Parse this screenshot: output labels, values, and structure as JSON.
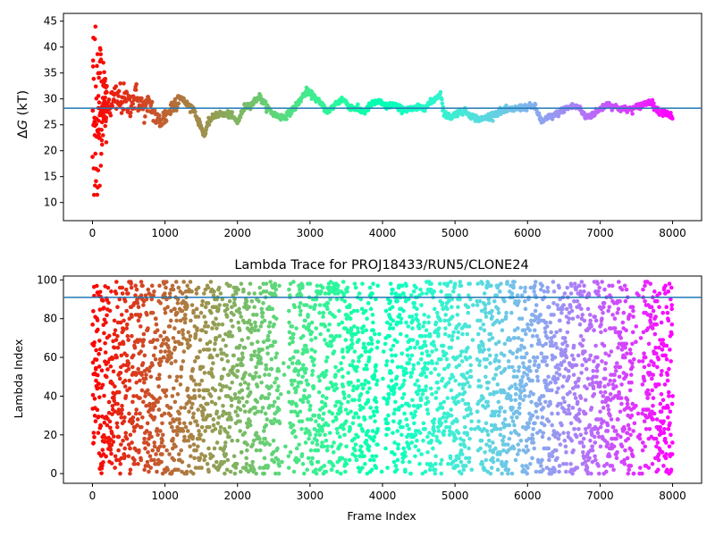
{
  "chart_data": [
    {
      "type": "scatter",
      "title": "",
      "xlabel": "",
      "ylabel": "ΔG (kT)",
      "ylabel_italic_part": "G",
      "xlim": [
        -400,
        8400
      ],
      "ylim": [
        6.5,
        46.5
      ],
      "xticks": [
        0,
        1000,
        2000,
        3000,
        4000,
        5000,
        6000,
        7000,
        8000
      ],
      "xtick_labels": [
        "0",
        "1000",
        "2000",
        "3000",
        "4000",
        "5000",
        "6000",
        "7000",
        "8000"
      ],
      "yticks": [
        10,
        15,
        20,
        25,
        30,
        35,
        40,
        45
      ],
      "ytick_labels": [
        "10",
        "15",
        "20",
        "25",
        "30",
        "35",
        "40",
        "45"
      ],
      "hline": 28.2,
      "hline_color": "#1f77b4",
      "colormap": "rainbow (color by frame index, red at 0 to purple at 8000)",
      "trace_anchors": [
        [
          150,
          29
        ],
        [
          200,
          28.5
        ],
        [
          300,
          29.5
        ],
        [
          400,
          30
        ],
        [
          500,
          29
        ],
        [
          600,
          30.5
        ],
        [
          700,
          28
        ],
        [
          800,
          29
        ],
        [
          900,
          25.5
        ],
        [
          950,
          26
        ],
        [
          1000,
          26.5
        ],
        [
          1100,
          28.5
        ],
        [
          1200,
          30.5
        ],
        [
          1300,
          29
        ],
        [
          1400,
          28
        ],
        [
          1450,
          26
        ],
        [
          1500,
          24.5
        ],
        [
          1550,
          23
        ],
        [
          1600,
          25.5
        ],
        [
          1700,
          27
        ],
        [
          1800,
          27
        ],
        [
          1900,
          27
        ],
        [
          2000,
          25.5
        ],
        [
          2100,
          28.5
        ],
        [
          2200,
          29
        ],
        [
          2300,
          30.5
        ],
        [
          2400,
          28.5
        ],
        [
          2500,
          27
        ],
        [
          2600,
          26.5
        ],
        [
          2700,
          27
        ],
        [
          2800,
          28.5
        ],
        [
          2950,
          31.5
        ],
        [
          3050,
          30.5
        ],
        [
          3150,
          29
        ],
        [
          3250,
          27.5
        ],
        [
          3350,
          29
        ],
        [
          3450,
          30
        ],
        [
          3550,
          28.5
        ],
        [
          3650,
          28
        ],
        [
          3750,
          27.5
        ],
        [
          3850,
          29
        ],
        [
          3950,
          29.5
        ],
        [
          4050,
          28.5
        ],
        [
          4150,
          29
        ],
        [
          4250,
          28
        ],
        [
          4400,
          28
        ],
        [
          4600,
          28.5
        ],
        [
          4800,
          31
        ],
        [
          4850,
          27
        ],
        [
          4950,
          26.5
        ],
        [
          5050,
          27.5
        ],
        [
          5150,
          27.5
        ],
        [
          5250,
          26.5
        ],
        [
          5350,
          26
        ],
        [
          5450,
          26.5
        ],
        [
          5600,
          27.5
        ],
        [
          5800,
          28
        ],
        [
          6000,
          28.5
        ],
        [
          6100,
          28.5
        ],
        [
          6200,
          25.5
        ],
        [
          6300,
          26.5
        ],
        [
          6400,
          27
        ],
        [
          6500,
          28
        ],
        [
          6600,
          28.5
        ],
        [
          6700,
          28.5
        ],
        [
          6800,
          26.5
        ],
        [
          6900,
          27
        ],
        [
          7000,
          28
        ],
        [
          7100,
          29
        ],
        [
          7200,
          28.5
        ],
        [
          7300,
          28
        ],
        [
          7450,
          28
        ],
        [
          7600,
          29
        ],
        [
          7700,
          29.5
        ],
        [
          7800,
          27.5
        ],
        [
          7900,
          27.5
        ],
        [
          8000,
          26.5
        ]
      ]
    },
    {
      "type": "scatter",
      "title": "Lambda Trace for PROJ18433/RUN5/CLONE24",
      "xlabel": "Frame Index",
      "ylabel": "Lambda Index",
      "xlim": [
        -400,
        8400
      ],
      "ylim": [
        -5,
        102
      ],
      "xticks": [
        0,
        1000,
        2000,
        3000,
        4000,
        5000,
        6000,
        7000,
        8000
      ],
      "xtick_labels": [
        "0",
        "1000",
        "2000",
        "3000",
        "4000",
        "5000",
        "6000",
        "7000",
        "8000"
      ],
      "yticks": [
        0,
        20,
        40,
        60,
        80,
        100
      ],
      "ytick_labels": [
        "0",
        "20",
        "40",
        "60",
        "80",
        "100"
      ],
      "hline": 91,
      "hline_color": "#1f77b4",
      "colormap": "rainbow (color by frame index, red at 0 to purple at 8000)",
      "x_range": [
        0,
        8000
      ],
      "y_range": [
        0,
        99
      ],
      "sparse_bands_x": [
        [
          2580,
          2700
        ],
        [
          3940,
          4040
        ],
        [
          5230,
          5300
        ],
        [
          7470,
          7580
        ]
      ]
    }
  ]
}
